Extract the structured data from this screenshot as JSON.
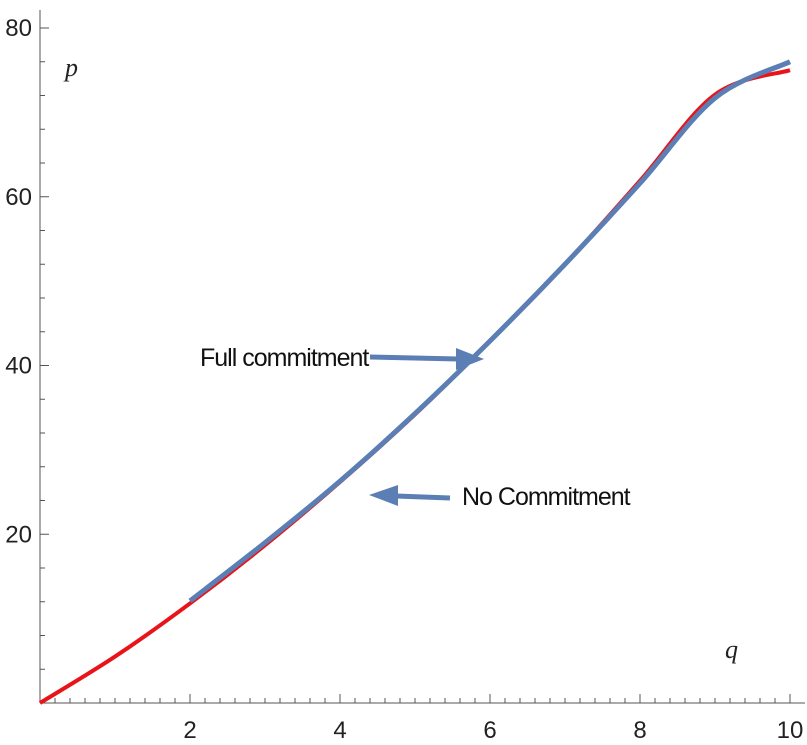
{
  "chart_data": {
    "type": "line",
    "title": "",
    "xlabel": "q",
    "ylabel": "p",
    "xlim": [
      0,
      10
    ],
    "ylim": [
      0,
      80
    ],
    "x_ticks": [
      2,
      4,
      6,
      8,
      10
    ],
    "y_ticks": [
      20,
      40,
      60,
      80
    ],
    "grid": false,
    "series": [
      {
        "name": "No Commitment",
        "color": "#e8141a",
        "x": [
          0,
          1,
          2,
          3,
          4,
          5,
          6,
          7,
          8,
          9,
          10
        ],
        "y": [
          0,
          5.5,
          11.8,
          18.7,
          26.2,
          34.2,
          42.9,
          52.0,
          61.9,
          72.1,
          75.0
        ]
      },
      {
        "name": "Full commitment",
        "color": "#5b7fb5",
        "x": [
          2,
          3,
          4,
          5,
          6,
          7,
          8,
          9,
          10
        ],
        "y": [
          12.1,
          19.0,
          26.3,
          34.3,
          42.9,
          52.0,
          61.6,
          71.7,
          76.0
        ]
      }
    ],
    "annotations": [
      {
        "text": "Full commitment",
        "arrow_color": "#5b7fb5",
        "point_to_x": 6.0,
        "point_to_y": 40.5
      },
      {
        "text": "No Commitment",
        "arrow_color": "#5b7fb5",
        "point_to_x": 4.3,
        "point_to_y": 24.5
      }
    ]
  }
}
